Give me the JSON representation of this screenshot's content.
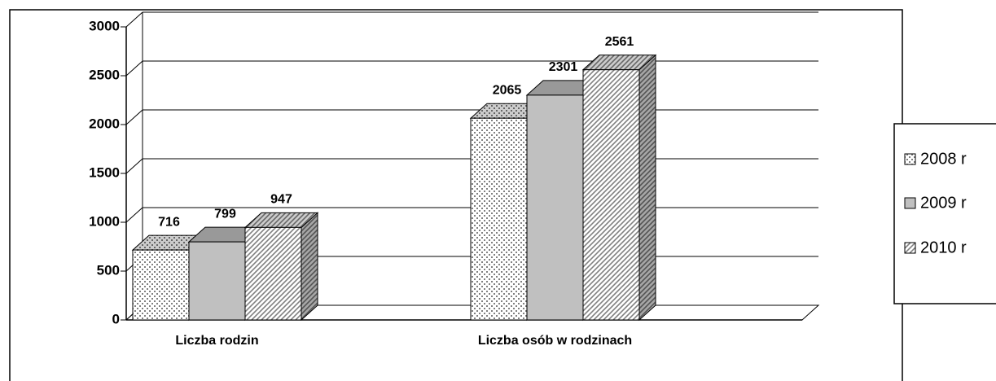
{
  "chart_data": {
    "type": "bar3d",
    "categories": [
      "Liczba rodzin",
      "Liczba osób w rodzinach"
    ],
    "series": [
      {
        "name": "2008 r",
        "color": "#808080",
        "values": [
          716,
          2065
        ]
      },
      {
        "name": "2009 r",
        "color": "#c0c0c0",
        "values": [
          799,
          2301
        ]
      },
      {
        "name": "2010 r",
        "color": "#808080",
        "values": [
          947,
          2561
        ]
      }
    ],
    "ylim": [
      0,
      3000
    ],
    "yticks": [
      0,
      500,
      1000,
      1500,
      2000,
      2500,
      3000
    ],
    "grid": true,
    "legend": "right"
  }
}
